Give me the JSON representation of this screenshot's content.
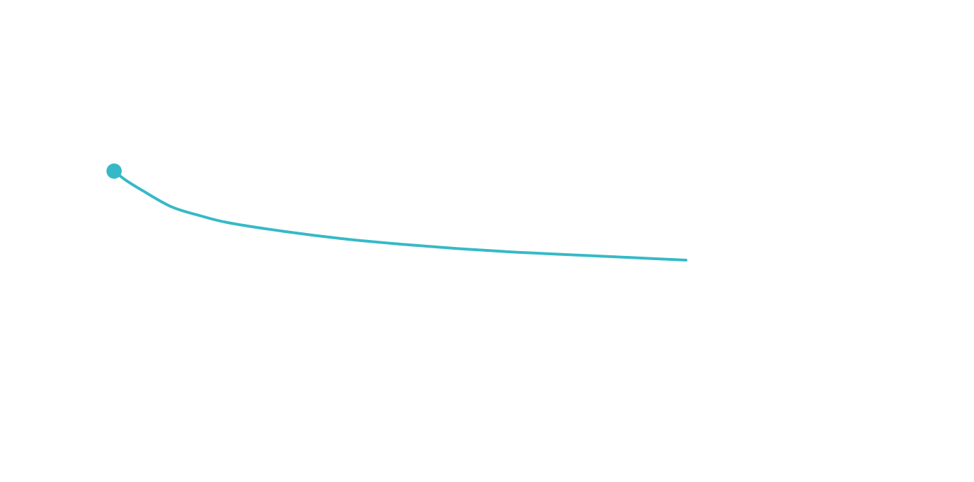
{
  "chart_data": {
    "type": "line",
    "series": [
      {
        "color": "#36b9c7",
        "start_marker": true,
        "x": [
          0,
          0.02,
          0.05,
          0.1,
          0.15,
          0.2,
          0.3,
          0.4,
          0.5,
          0.6,
          0.7,
          0.8,
          0.9,
          1.0
        ],
        "y": [
          1.0,
          0.9,
          0.78,
          0.6,
          0.5,
          0.42,
          0.32,
          0.24,
          0.18,
          0.13,
          0.09,
          0.06,
          0.03,
          0.0
        ]
      }
    ],
    "xlim": [
      0,
      1
    ],
    "ylim": [
      0,
      1
    ],
    "grid": false,
    "legend": "none"
  }
}
